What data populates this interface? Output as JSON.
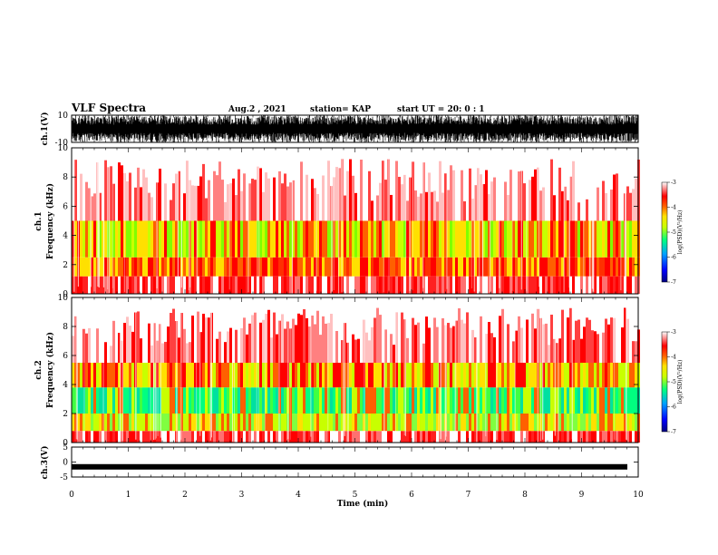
{
  "header": {
    "title": "VLF Spectra",
    "date": "Aug.2  , 2021",
    "station": "station= KAP",
    "start": "start  UT  =   20: 0   : 1"
  },
  "colors": {
    "background": "#ffffff",
    "waveform": "#000000",
    "colormap": [
      "#000080",
      "#0000ff",
      "#00a0ff",
      "#00ff80",
      "#c8ff00",
      "#ffe000",
      "#ff6000",
      "#ff0000",
      "#ffffff"
    ]
  },
  "chart_data": [
    {
      "type": "line",
      "panel": "ch1-waveform",
      "ylabel": "ch.1(V)",
      "ylim": [
        -10,
        10
      ],
      "yticks": [
        "10",
        "-10"
      ],
      "xlim": [
        0,
        10
      ],
      "description_level": "saturated black noise trace spanning full range"
    },
    {
      "type": "heatmap",
      "panel": "ch1-spectrogram",
      "ylabel": "ch.1\nFrequency  (kHz)",
      "ylabel_lines": [
        "ch.1",
        "Frequency  (kHz)"
      ],
      "ylim": [
        0,
        10
      ],
      "yticks": [
        "0",
        "2",
        "4",
        "6",
        "8",
        "10"
      ],
      "xlim": [
        0,
        10
      ],
      "colorbar": {
        "label": "log(PSD)(V²/Hz)",
        "range": [
          -7,
          -3
        ],
        "ticks": [
          "-3",
          "-4",
          "-5",
          "-6",
          "-7"
        ]
      },
      "bands_khz": [
        {
          "from": 0,
          "to": 1.2,
          "level": "red/white"
        },
        {
          "from": 1.2,
          "to": 2.5,
          "level": "red-yellow"
        },
        {
          "from": 2.5,
          "to": 5.0,
          "level": "yellow-green"
        },
        {
          "from": 5.0,
          "to": 10,
          "level": "red fading to white"
        }
      ]
    },
    {
      "type": "heatmap",
      "panel": "ch2-spectrogram",
      "ylabel": "ch.2\nFrequency  (kHz)",
      "ylabel_lines": [
        "ch.2",
        "Frequency  (kHz)"
      ],
      "ylim": [
        0,
        10
      ],
      "yticks": [
        "0",
        "2",
        "4",
        "6",
        "8",
        "10"
      ],
      "xlim": [
        0,
        10
      ],
      "colorbar": {
        "label": "log(PSD)(V²/Hz)",
        "range": [
          -7,
          -3
        ],
        "ticks": [
          "-3",
          "-4",
          "-5",
          "-6",
          "-7"
        ]
      },
      "bands_khz": [
        {
          "from": 0,
          "to": 0.8,
          "level": "red/white"
        },
        {
          "from": 0.8,
          "to": 2.0,
          "level": "green-yellow"
        },
        {
          "from": 2.0,
          "to": 3.8,
          "level": "green"
        },
        {
          "from": 3.8,
          "to": 5.5,
          "level": "yellow-red"
        },
        {
          "from": 5.5,
          "to": 10,
          "level": "red fading to white"
        }
      ]
    },
    {
      "type": "line",
      "panel": "ch3-waveform",
      "ylabel": "ch.3(V)",
      "ylim": [
        -5,
        5
      ],
      "yticks": [
        "5",
        "0",
        "-5"
      ],
      "xlim": [
        0,
        10
      ],
      "trace_level_v": -1.6,
      "xlabel": "Time  (min)",
      "xticks": [
        "0",
        "1",
        "2",
        "3",
        "4",
        "5",
        "6",
        "7",
        "8",
        "9",
        "10"
      ]
    }
  ]
}
